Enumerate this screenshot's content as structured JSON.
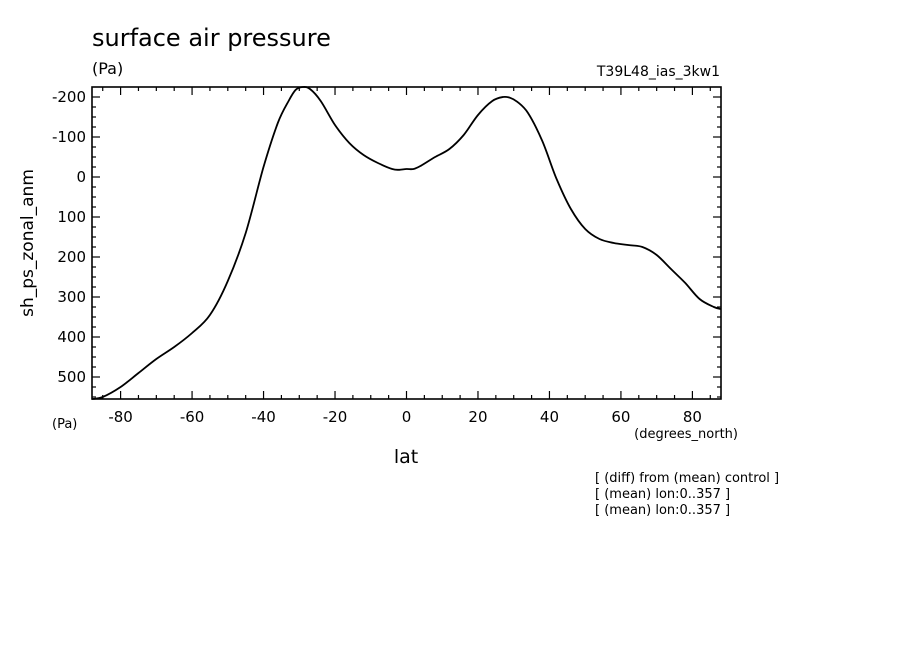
{
  "chart_data": {
    "type": "line",
    "title": "surface air pressure",
    "units": "(Pa)",
    "run_label": "T39L48_ias_3kw1",
    "ylabel": "sh_ps_zonal_anm",
    "xlabel": "lat",
    "x_units": "(degrees_north)",
    "y_units": "(Pa)",
    "xlim": [
      -88,
      88
    ],
    "ylim": [
      -225,
      555
    ],
    "y_inverted": true,
    "x_ticks": [
      -80,
      -60,
      -40,
      -20,
      0,
      20,
      40,
      60,
      80
    ],
    "x_tick_labels": [
      "-80",
      "-60",
      "-40",
      "-20",
      "0",
      "20",
      "40",
      "60",
      "80"
    ],
    "y_ticks": [
      -200,
      -100,
      0,
      100,
      200,
      300,
      400,
      500
    ],
    "y_tick_labels": [
      "-200",
      "-100",
      "0",
      "100",
      "200",
      "300",
      "400",
      "500"
    ],
    "grid": false,
    "series": [
      {
        "color": "#000000",
        "x": [
          -88,
          -85,
          -80,
          -75,
          -70,
          -65,
          -60,
          -55,
          -50,
          -45,
          -40,
          -36,
          -33,
          -31,
          -29,
          -27,
          -24,
          -20,
          -16,
          -12,
          -8,
          -4,
          -2,
          0,
          2,
          4,
          8,
          12,
          16,
          20,
          24,
          27,
          29,
          31,
          34,
          38,
          42,
          46,
          50,
          54,
          58,
          62,
          66,
          70,
          74,
          78,
          82,
          86,
          88
        ],
        "y": [
          555,
          550,
          525,
          490,
          455,
          425,
          390,
          345,
          260,
          140,
          -25,
          -135,
          -190,
          -218,
          -225,
          -220,
          -190,
          -130,
          -85,
          -55,
          -35,
          -20,
          -18,
          -20,
          -20,
          -28,
          -50,
          -70,
          -105,
          -155,
          -190,
          -200,
          -198,
          -188,
          -160,
          -90,
          5,
          80,
          130,
          155,
          165,
          170,
          175,
          195,
          230,
          265,
          305,
          325,
          330
        ]
      }
    ],
    "annotations": [
      "[ (diff) from (mean) control ]",
      "[ (mean) lon:0..357 ]",
      "[ (mean) lon:0..357 ]"
    ]
  }
}
